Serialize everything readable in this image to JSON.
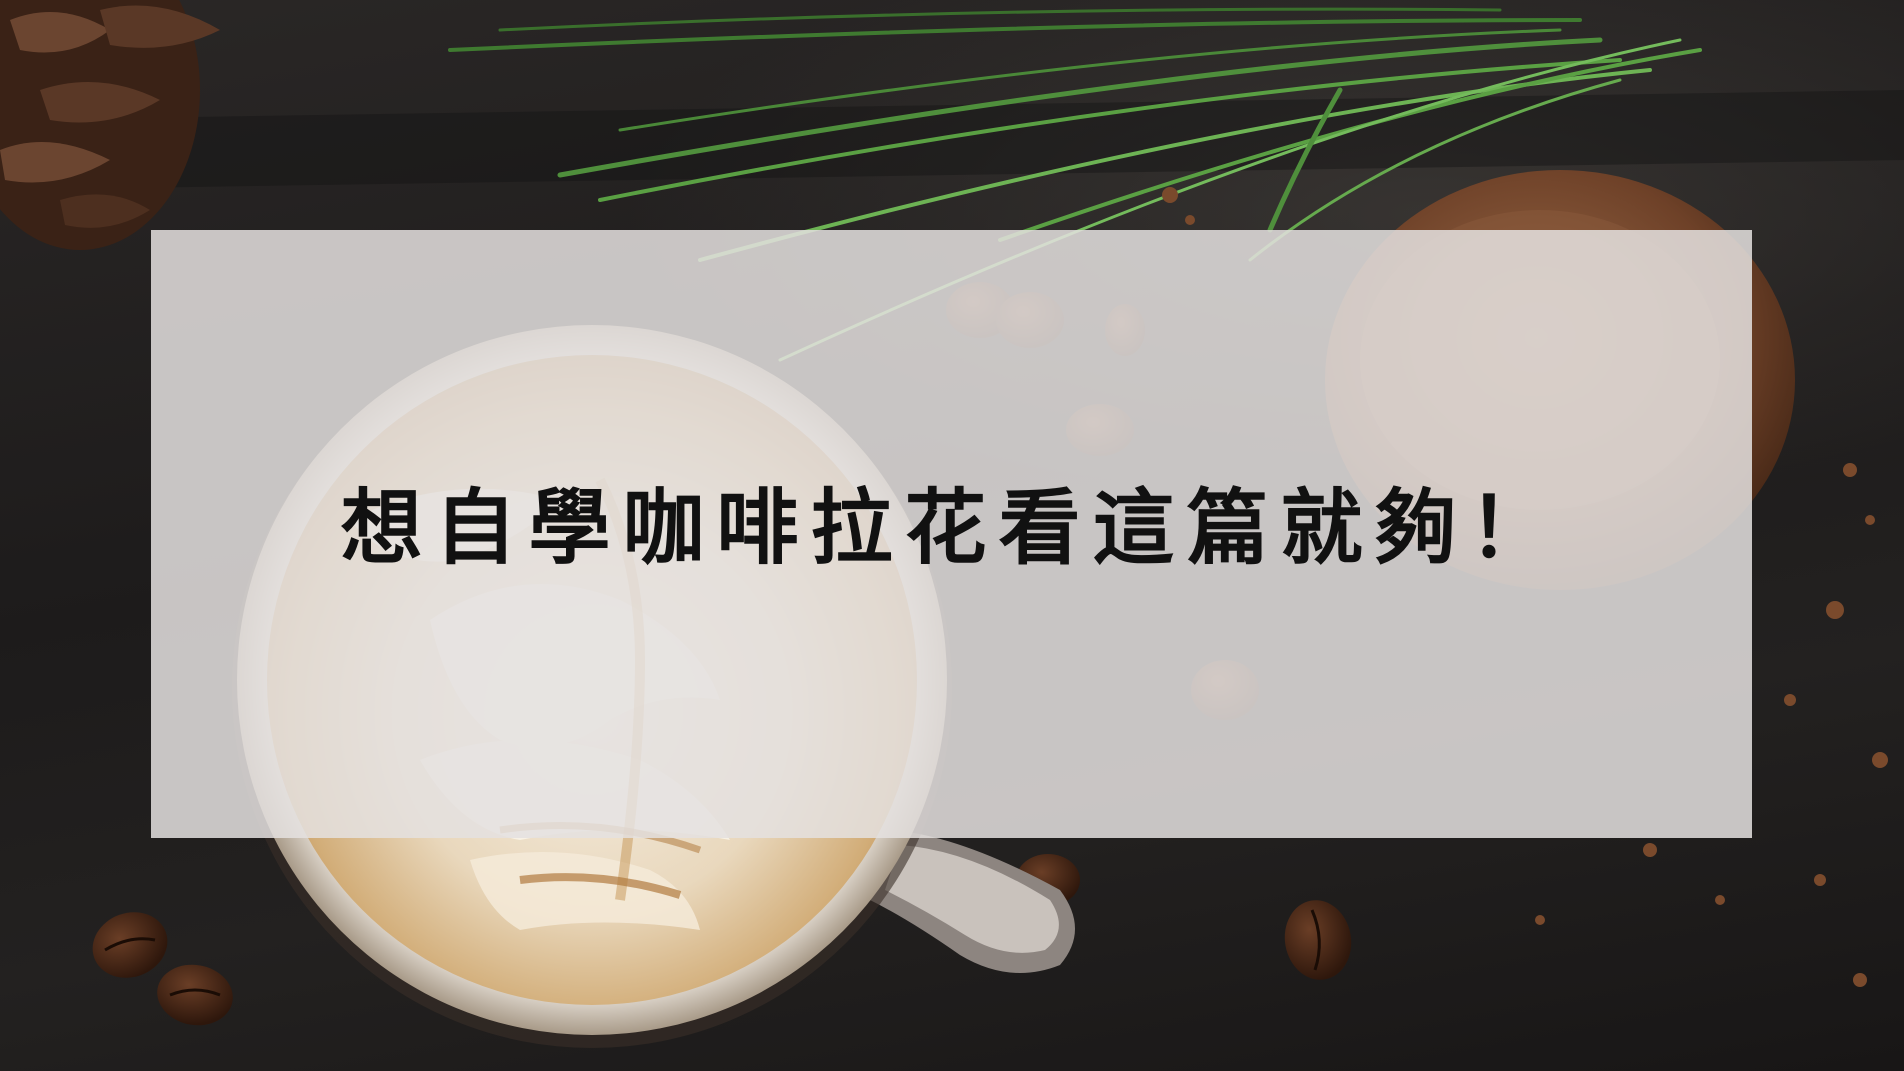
{
  "article": {
    "headline": "想自學咖啡拉花看這篇就夠！"
  },
  "image": {
    "subject_icons": [
      "latte-cup-icon",
      "coffee-bean-icon",
      "pine-needle-icon",
      "pine-cone-icon",
      "cookie-icon"
    ]
  },
  "colors": {
    "overlay": "#e4e1e0",
    "headline_text": "#111111",
    "slate_background": "#1d1b1b",
    "crema": "#c89a5e",
    "foam": "#f3ece0",
    "pine_green": "#4f8f3c"
  }
}
